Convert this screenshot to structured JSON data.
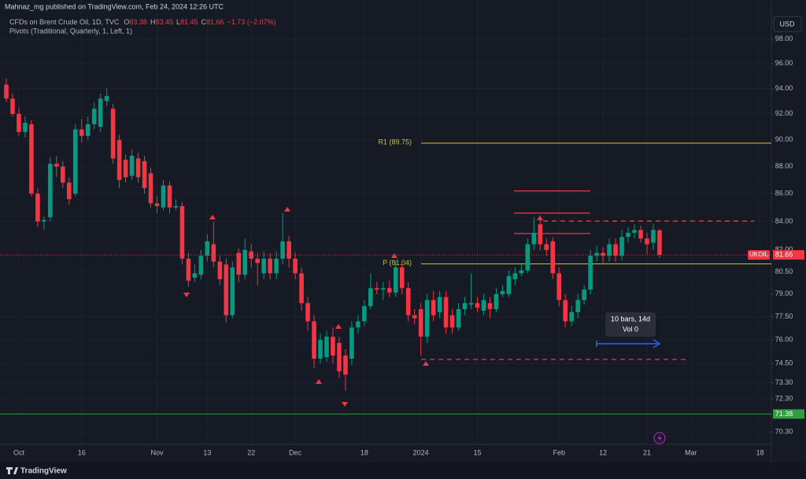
{
  "chart_data": {
    "type": "candlestick",
    "attribution": "Mahnaz_mg published on TradingView.com, Feb 24, 2024 12:26 UTC",
    "title": "CFDs on Brent Crude Oil, 1D, TVC",
    "ohlc_keys": [
      "O",
      "H",
      "L",
      "C"
    ],
    "change": "−1.73 (−2.07%)",
    "indicator": "Pivots (Traditional, Quarterly, 1, Left, 1)",
    "currency": "USD",
    "symbol": "UKOIL",
    "brand": "TradingView",
    "log_scale": true,
    "grid": true,
    "up_color": "#089981",
    "down_color": "#f23645",
    "categories": [
      null,
      null,
      "Oct",
      null,
      null,
      null,
      null,
      null,
      null,
      null,
      null,
      null,
      "16",
      null,
      null,
      null,
      null,
      null,
      null,
      null,
      null,
      null,
      null,
      null,
      "Nov",
      null,
      null,
      null,
      null,
      null,
      null,
      null,
      "13",
      null,
      null,
      null,
      null,
      null,
      null,
      "22",
      null,
      null,
      null,
      null,
      null,
      null,
      "Dec",
      null,
      null,
      null,
      null,
      null,
      null,
      null,
      null,
      null,
      null,
      "18",
      null,
      null,
      null,
      null,
      null,
      null,
      null,
      null,
      "2024",
      null,
      null,
      null,
      null,
      null,
      null,
      null,
      null,
      "15",
      null,
      null,
      null,
      null,
      null,
      null,
      null,
      null,
      null,
      null,
      null,
      null,
      "Feb",
      null,
      null,
      null,
      null,
      null,
      null,
      "12",
      null,
      null,
      null,
      null,
      null,
      null,
      "21",
      null,
      null,
      null,
      null,
      null,
      null,
      "Mar",
      null,
      null,
      null,
      null,
      null,
      null,
      null,
      null,
      null,
      null,
      "18",
      null
    ],
    "open": [
      94.3,
      93.2,
      92.0,
      90.6,
      91.2,
      86.0,
      84.0,
      84.3,
      88.2,
      88.0,
      86.8,
      86.0,
      90.8,
      90.3,
      91.2,
      91.0,
      93.0,
      92.4,
      90.0,
      88.5,
      87.3,
      88.6,
      88.4,
      87.5,
      85.3,
      85.0,
      86.6,
      85.0,
      85.1,
      81.4,
      80.1,
      80.3,
      81.6,
      82.4,
      81.2,
      81.0,
      77.6,
      81.8,
      80.3,
      81.9,
      81.4,
      80.4,
      81.4,
      80.4,
      81.4,
      82.6,
      81.4,
      80.4,
      78.4,
      77.2,
      74.8,
      74.9,
      76.2,
      75.8,
      75.0,
      74.8,
      76.8,
      77.2,
      78.2,
      79.4,
      79.3,
      79.4,
      79.1,
      80.8,
      79.4,
      77.6,
      78.0,
      76.2,
      78.6,
      77.8,
      78.8,
      77.6,
      76.8,
      78.0,
      78.3,
      78.4,
      77.9,
      78.4,
      78.0,
      79.0,
      79.0,
      80.0,
      80.4,
      80.6,
      82.4,
      83.8,
      82.4,
      82.6,
      80.4,
      78.6,
      77.2,
      77.8,
      78.6,
      79.3,
      81.6,
      81.8,
      81.6,
      82.4,
      81.6,
      82.9,
      83.2,
      83.4,
      82.8,
      82.5,
      83.38,
      null,
      null,
      null,
      null,
      null,
      null,
      null,
      null,
      null,
      null,
      null,
      null,
      null,
      null,
      null,
      null,
      null
    ],
    "high": [
      94.8,
      93.6,
      92.5,
      91.8,
      91.5,
      86.4,
      84.4,
      88.7,
      88.8,
      88.4,
      87.2,
      91.2,
      91.6,
      91.8,
      92.9,
      93.6,
      94.0,
      92.8,
      90.4,
      88.9,
      89.3,
      89.0,
      88.8,
      87.9,
      85.8,
      87.0,
      86.9,
      85.6,
      85.4,
      81.8,
      81.0,
      82.0,
      83.1,
      84.0,
      81.6,
      81.4,
      81.2,
      82.1,
      82.8,
      82.4,
      81.8,
      81.9,
      81.8,
      81.9,
      84.6,
      83.0,
      81.8,
      80.8,
      78.8,
      77.6,
      76.4,
      76.6,
      76.8,
      76.2,
      75.4,
      77.2,
      77.6,
      78.6,
      80.4,
      79.8,
      79.8,
      79.9,
      81.2,
      81.1,
      79.8,
      78.0,
      78.4,
      79.0,
      79.2,
      79.2,
      79.2,
      78.0,
      78.4,
      78.8,
      80.4,
      78.8,
      79.0,
      78.8,
      79.4,
      79.6,
      80.6,
      80.8,
      81.0,
      82.8,
      84.3,
      84.4,
      82.8,
      82.9,
      80.8,
      79.0,
      78.2,
      79.0,
      79.6,
      82.0,
      82.3,
      82.2,
      82.8,
      82.8,
      83.4,
      83.6,
      83.8,
      83.7,
      83.2,
      83.8,
      83.45,
      null,
      null,
      null,
      null,
      null,
      null,
      null,
      null,
      null,
      null,
      null,
      null,
      null,
      null,
      null,
      null,
      null
    ],
    "low": [
      92.9,
      91.8,
      90.3,
      90.2,
      85.8,
      83.6,
      83.4,
      84.0,
      87.2,
      86.4,
      85.2,
      85.8,
      89.8,
      90.0,
      90.8,
      90.6,
      92.6,
      88.2,
      86.4,
      86.8,
      87.0,
      86.8,
      86.0,
      85.0,
      84.6,
      84.8,
      84.6,
      84.8,
      81.0,
      79.5,
      79.8,
      80.0,
      81.2,
      80.8,
      79.6,
      77.1,
      77.4,
      79.8,
      80.0,
      80.8,
      79.6,
      80.0,
      80.0,
      80.0,
      81.0,
      80.8,
      80.0,
      77.9,
      76.6,
      74.2,
      74.5,
      74.6,
      74.5,
      73.6,
      72.8,
      74.4,
      76.4,
      76.9,
      78.0,
      79.0,
      78.6,
      78.8,
      78.8,
      79.0,
      77.2,
      77.0,
      75.0,
      75.8,
      77.2,
      77.4,
      76.4,
      76.4,
      76.6,
      77.6,
      78.0,
      77.8,
      77.6,
      77.4,
      77.8,
      78.8,
      78.8,
      79.6,
      80.2,
      80.4,
      82.0,
      82.0,
      81.6,
      80.0,
      78.2,
      76.8,
      76.9,
      77.4,
      78.3,
      79.0,
      81.2,
      81.0,
      81.2,
      81.2,
      81.3,
      82.5,
      82.8,
      82.5,
      81.7,
      82.0,
      81.45,
      null,
      null,
      null,
      null,
      null,
      null,
      null,
      null,
      null,
      null,
      null,
      null,
      null,
      null,
      null,
      null,
      null
    ],
    "close": [
      93.2,
      92.0,
      90.6,
      91.3,
      86.0,
      84.0,
      84.1,
      88.2,
      88.0,
      86.8,
      85.6,
      90.8,
      90.3,
      91.2,
      92.4,
      93.2,
      93.4,
      88.6,
      87.0,
      87.2,
      88.8,
      87.2,
      86.4,
      85.3,
      85.1,
      86.6,
      85.0,
      85.1,
      81.4,
      79.9,
      80.4,
      81.6,
      82.6,
      81.2,
      80.0,
      77.6,
      80.8,
      80.3,
      82.0,
      81.4,
      81.1,
      81.4,
      80.4,
      81.4,
      82.6,
      81.4,
      80.4,
      78.4,
      77.2,
      74.8,
      76.0,
      76.2,
      75.0,
      74.0,
      73.8,
      76.8,
      77.2,
      78.2,
      79.4,
      79.3,
      79.4,
      79.1,
      80.8,
      79.4,
      77.6,
      77.4,
      76.2,
      78.6,
      77.6,
      78.8,
      76.8,
      76.8,
      78.0,
      78.4,
      78.4,
      78.1,
      78.6,
      78.0,
      79.0,
      79.2,
      80.2,
      80.4,
      80.6,
      82.4,
      83.2,
      82.4,
      82.0,
      80.4,
      78.6,
      77.2,
      77.8,
      78.6,
      79.3,
      81.6,
      81.8,
      81.6,
      82.4,
      81.6,
      82.9,
      83.2,
      83.4,
      82.8,
      82.4,
      83.4,
      81.66,
      null,
      null,
      null,
      null,
      null,
      null,
      null,
      null,
      null,
      null,
      null,
      null,
      null,
      null,
      null,
      null,
      null
    ],
    "ylim": [
      69.57,
      101.3
    ],
    "yticks": [
      {
        "value": 98,
        "label": "98.00"
      },
      {
        "value": 96,
        "label": "96.00"
      },
      {
        "value": 94,
        "label": "94.00"
      },
      {
        "value": 92,
        "label": "92.00"
      },
      {
        "value": 90,
        "label": "90.00"
      },
      {
        "value": 88,
        "label": "88.00"
      },
      {
        "value": 86,
        "label": "86.00"
      },
      {
        "value": 84,
        "label": "84.00"
      },
      {
        "value": 82,
        "label": "82.00"
      },
      {
        "value": 80.5,
        "label": "80.50"
      },
      {
        "value": 79,
        "label": "79.00"
      },
      {
        "value": 77.5,
        "label": "77.50"
      },
      {
        "value": 76,
        "label": "76.00"
      },
      {
        "value": 74.5,
        "label": "74.50"
      },
      {
        "value": 73.3,
        "label": "73.30"
      },
      {
        "value": 72.3,
        "label": "72.30"
      },
      {
        "value": 70.3,
        "label": "70.30"
      }
    ],
    "pivots": [
      {
        "label": "R1 (89.75)",
        "value": 89.75
      },
      {
        "label": "P (81.04)",
        "value": 81.04
      }
    ],
    "pivot_color": "#c9c13a",
    "support": {
      "value": 71.38,
      "color": "#2e9e3e"
    },
    "drawings": [
      {
        "value": 84.03,
        "style": "dashed"
      },
      {
        "value": 74.75,
        "style": "dashed"
      },
      {
        "value": 86.2,
        "style": "solid"
      },
      {
        "value": 84.6,
        "style": "solid"
      },
      {
        "value": 83.15,
        "style": "solid"
      }
    ],
    "measure": {
      "text": "10 bars, 14d",
      "volume": "Vol 0",
      "color": "#2962ff"
    }
  }
}
